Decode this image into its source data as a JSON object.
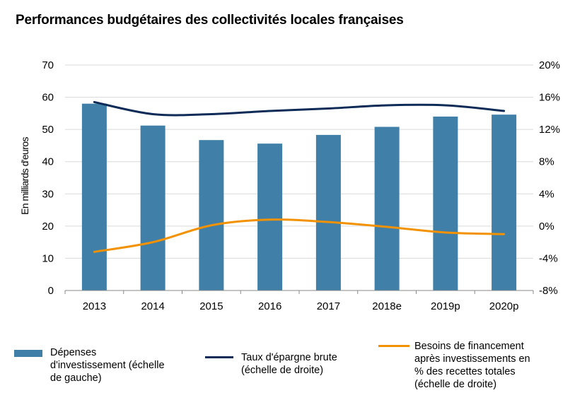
{
  "chart_data": {
    "type": "bar+line",
    "title": "Performances budgétaires des collectivités locales françaises",
    "categories": [
      "2013",
      "2014",
      "2015",
      "2016",
      "2017",
      "2018e",
      "2019p",
      "2020p"
    ],
    "left_axis": {
      "label": "En milliards d'euros",
      "min": 0,
      "max": 70,
      "ticks": [
        "0",
        "10",
        "20",
        "30",
        "40",
        "50",
        "60",
        "70"
      ]
    },
    "right_axis": {
      "min": -8,
      "max": 20,
      "ticks": [
        "-8%",
        "-4%",
        "0%",
        "4%",
        "8%",
        "12%",
        "16%",
        "20%"
      ]
    },
    "series": [
      {
        "name": "Dépenses d'investissement (échelle de gauche)",
        "type": "bar",
        "axis": "left",
        "color": "#3f7fa8",
        "values": [
          58.0,
          51.2,
          46.7,
          45.6,
          48.3,
          50.8,
          54.0,
          54.6
        ]
      },
      {
        "name": "Taux d'épargne brute (échelle de droite)",
        "type": "line",
        "axis": "right",
        "color": "#0d2b56",
        "values": [
          15.4,
          13.9,
          13.9,
          14.3,
          14.6,
          15.0,
          15.0,
          14.3
        ]
      },
      {
        "name": "Besoins de financement après investissements en % des recettes totales (échelle de droite)",
        "type": "line",
        "axis": "right",
        "color": "#f39200",
        "values": [
          -3.2,
          -2.0,
          0.1,
          0.8,
          0.5,
          -0.1,
          -0.8,
          -1.0
        ]
      }
    ],
    "grid": true,
    "legend_position": "bottom"
  },
  "legend": {
    "bar": "Dépenses\nd'investissement (échelle\nde gauche)",
    "line1": "Taux d'épargne brute\n(échelle de droite)",
    "line2": "Besoins de financement\naprès investissements en\n% des recettes totales\n(échelle de droite)"
  }
}
